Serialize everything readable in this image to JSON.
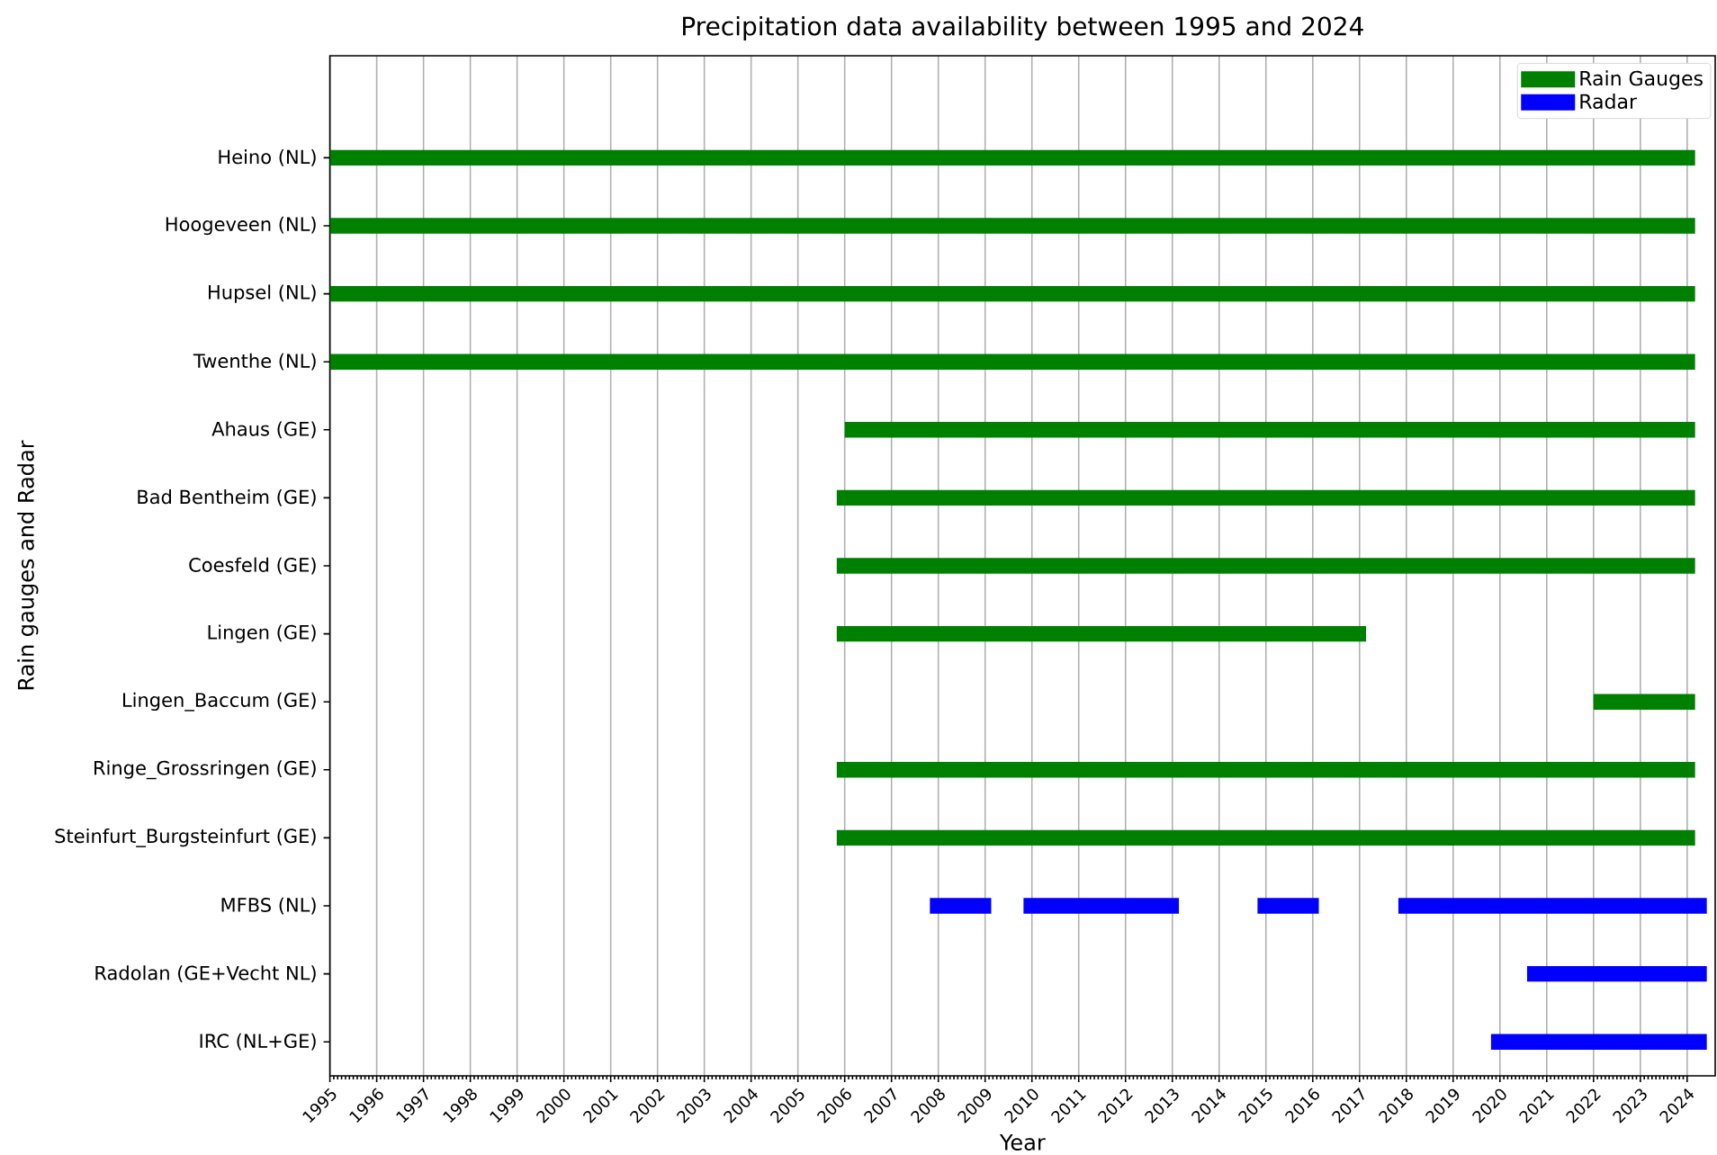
{
  "chart_data": {
    "type": "bar",
    "orientation": "horizontal",
    "title": "Precipitation data availability between 1995 and 2024",
    "xlabel": "Year",
    "ylabel": "Rain gauges and Radar",
    "categories": [
      "Heino (NL)",
      "Hoogeveen (NL)",
      "Hupsel (NL)",
      "Twenthe (NL)",
      "Ahaus (GE)",
      "Bad Bentheim (GE)",
      "Coesfeld (GE)",
      "Lingen (GE)",
      "Lingen_Baccum (GE)",
      "Ringe_Grossringen (GE)",
      "Steinfurt_Burgsteinfurt (GE)",
      "MFBS (NL)",
      "Radolan (GE+Vecht NL)",
      "IRC (NL+GE)"
    ],
    "series": [
      {
        "name": "Rain Gauges",
        "color": "#008000",
        "base": [
          1995,
          1995,
          1995,
          1995,
          2006.0,
          2005.83,
          2005.83,
          2005.83,
          2022.0,
          2005.83,
          2005.83,
          null,
          null,
          null
        ],
        "values": [
          29.17,
          29.17,
          29.17,
          29.17,
          18.17,
          18.34,
          18.34,
          11.31,
          2.17,
          18.34,
          18.34,
          null,
          null,
          null
        ]
      },
      {
        "name": "Radar",
        "color": "#0000ff",
        "base": [
          null,
          null,
          null,
          null,
          null,
          null,
          null,
          null,
          null,
          null,
          null,
          2007.82,
          2020.58,
          2019.81
        ],
        "values": [
          null,
          null,
          null,
          null,
          null,
          null,
          null,
          null,
          null,
          null,
          null,
          1.31,
          3.84,
          4.61
        ]
      },
      {
        "color": "#0000ff",
        "base": [
          null,
          null,
          null,
          null,
          null,
          null,
          null,
          null,
          null,
          null,
          null,
          2009.82,
          null,
          null
        ],
        "values": [
          null,
          null,
          null,
          null,
          null,
          null,
          null,
          null,
          null,
          null,
          null,
          3.32,
          null,
          null
        ]
      },
      {
        "color": "#0000ff",
        "base": [
          null,
          null,
          null,
          null,
          null,
          null,
          null,
          null,
          null,
          null,
          null,
          2014.82,
          null,
          null
        ],
        "values": [
          null,
          null,
          null,
          null,
          null,
          null,
          null,
          null,
          null,
          null,
          null,
          1.31,
          null,
          null
        ]
      },
      {
        "color": "#0000ff",
        "base": [
          null,
          null,
          null,
          null,
          null,
          null,
          null,
          null,
          null,
          null,
          null,
          2017.83,
          null,
          null
        ],
        "values": [
          null,
          null,
          null,
          null,
          null,
          null,
          null,
          null,
          null,
          null,
          null,
          6.59,
          null,
          null
        ]
      }
    ],
    "xlim": [
      1995,
      2024.6
    ],
    "xticks": [
      1995,
      1996,
      1997,
      1998,
      1999,
      2000,
      2001,
      2002,
      2003,
      2004,
      2005,
      2006,
      2007,
      2008,
      2009,
      2010,
      2011,
      2012,
      2013,
      2014,
      2015,
      2016,
      2017,
      2018,
      2019,
      2020,
      2021,
      2022,
      2023,
      2024
    ],
    "grid": "x",
    "legend": "top right"
  }
}
